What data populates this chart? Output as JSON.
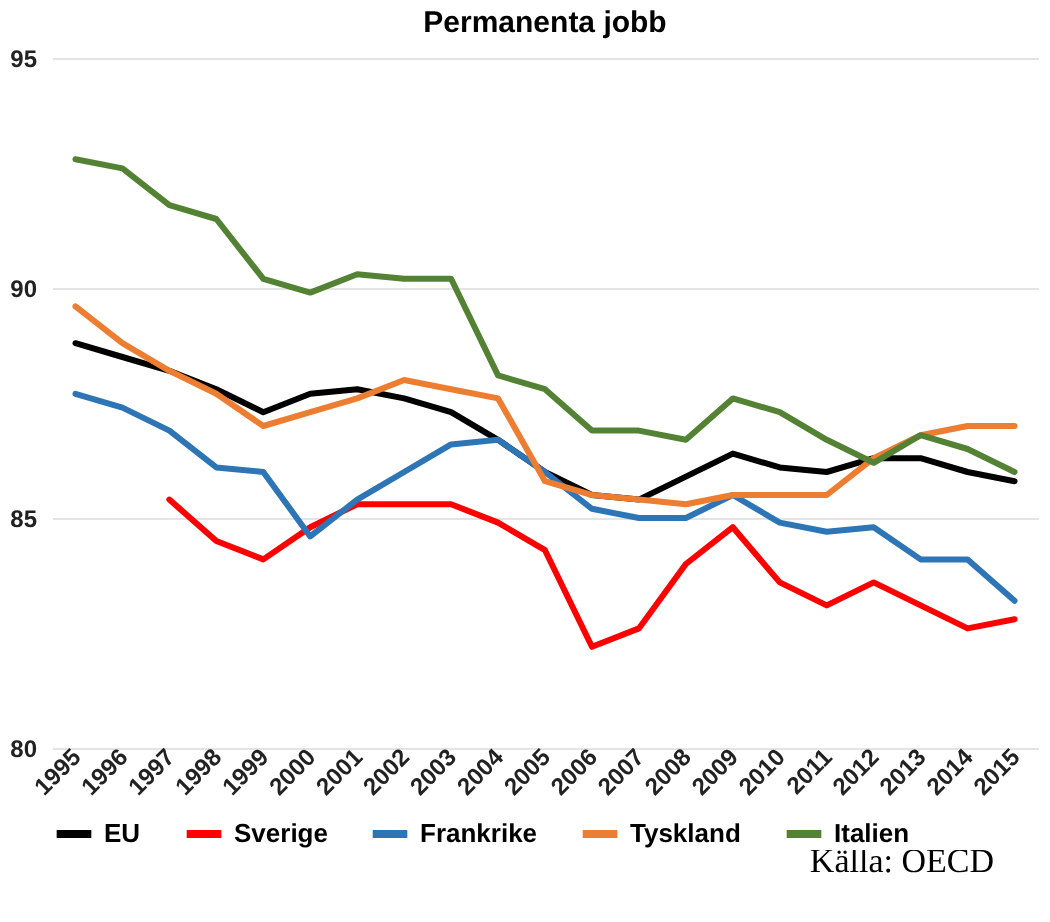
{
  "chart_data": {
    "type": "line",
    "title": "Permanenta jobb",
    "categories": [
      "1995",
      "1996",
      "1997",
      "1998",
      "1999",
      "2000",
      "2001",
      "2002",
      "2003",
      "2004",
      "2005",
      "2006",
      "2007",
      "2008",
      "2009",
      "2010",
      "2011",
      "2012",
      "2013",
      "2014",
      "2015"
    ],
    "series": [
      {
        "name": "EU",
        "color": "#000000",
        "values": [
          88.8,
          88.5,
          88.2,
          87.8,
          87.3,
          87.7,
          87.8,
          87.6,
          87.3,
          86.7,
          86.0,
          85.5,
          85.4,
          85.9,
          86.4,
          86.1,
          86.0,
          86.3,
          86.3,
          86.0,
          85.8
        ]
      },
      {
        "name": "Sverige",
        "color": "#ff0000",
        "values": [
          null,
          null,
          85.4,
          84.5,
          84.1,
          84.8,
          85.3,
          85.3,
          85.3,
          84.9,
          84.3,
          82.2,
          82.6,
          84.0,
          84.8,
          83.6,
          83.1,
          83.6,
          83.1,
          82.6,
          82.8
        ]
      },
      {
        "name": "Frankrike",
        "color": "#2e75b6",
        "values": [
          87.7,
          87.4,
          86.9,
          86.1,
          86.0,
          84.6,
          85.4,
          86.0,
          86.6,
          86.7,
          86.0,
          85.2,
          85.0,
          85.0,
          85.5,
          84.9,
          84.7,
          84.8,
          84.1,
          84.1,
          83.2
        ]
      },
      {
        "name": "Tyskland",
        "color": "#ed7d31",
        "values": [
          89.6,
          88.8,
          88.2,
          87.7,
          87.0,
          87.3,
          87.6,
          88.0,
          87.8,
          87.6,
          85.8,
          85.5,
          85.4,
          85.3,
          85.5,
          85.5,
          85.5,
          86.3,
          86.8,
          87.0,
          87.0
        ]
      },
      {
        "name": "Italien",
        "color": "#548235",
        "values": [
          92.8,
          92.6,
          91.8,
          91.5,
          90.2,
          89.9,
          90.3,
          90.2,
          90.2,
          88.1,
          87.8,
          86.9,
          86.9,
          86.7,
          87.6,
          87.3,
          86.7,
          86.2,
          86.8,
          86.5,
          86.0
        ]
      }
    ],
    "ylim": [
      80,
      95
    ],
    "yticks": [
      80,
      85,
      90,
      95
    ],
    "grid": "y",
    "legend": "bottom",
    "line_style": "solid",
    "marker": "none",
    "annotations": [
      "Källa: OECD"
    ]
  }
}
